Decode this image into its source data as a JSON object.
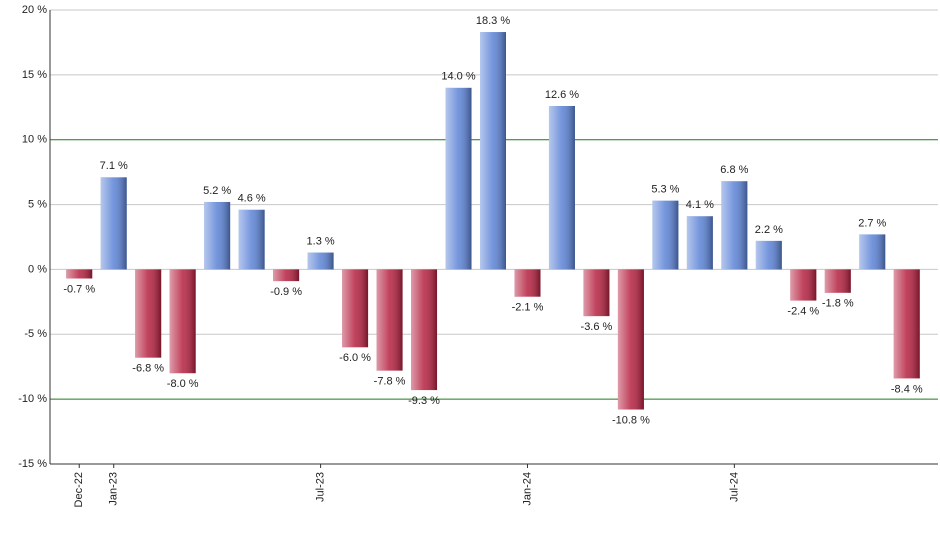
{
  "chart_data": {
    "type": "bar",
    "categories": [
      "Dec-22",
      "Jan-23",
      null,
      null,
      null,
      null,
      null,
      "Jul-23",
      null,
      null,
      null,
      null,
      null,
      "Jan-24",
      null,
      null,
      null,
      null,
      null,
      "Jul-24",
      null,
      null,
      null,
      null,
      null
    ],
    "values": [
      -0.7,
      7.1,
      -6.8,
      -8.0,
      5.2,
      4.6,
      -0.9,
      1.3,
      -6.0,
      -7.8,
      -9.3,
      14.0,
      18.3,
      -2.1,
      12.6,
      -3.6,
      -10.8,
      5.3,
      4.1,
      6.8,
      2.2,
      -2.4,
      -1.8,
      2.7,
      -8.4
    ],
    "value_labels": [
      "-0.7 %",
      "7.1 %",
      "-6.8 %",
      "-8.0 %",
      "5.2 %",
      "4.6 %",
      "-0.9 %",
      "1.3 %",
      "-6.0 %",
      "-7.8 %",
      "-9.3 %",
      "14.0 %",
      "18.3 %",
      "-2.1 %",
      "12.6 %",
      "-3.6 %",
      "-10.8 %",
      "5.3 %",
      "4.1 %",
      "6.8 %",
      "2.2 %",
      "-2.4 %",
      "-1.8 %",
      "2.7 %",
      "-8.4 %"
    ],
    "positive_color": "#5b82d6",
    "negative_color": "#b5203f",
    "ylim": [
      -15,
      20
    ],
    "yticks": [
      {
        "value": -15,
        "label": "-15 %"
      },
      {
        "value": -10,
        "label": "-10 %"
      },
      {
        "value": -5,
        "label": "-5 %"
      },
      {
        "value": 0,
        "label": "0 %"
      },
      {
        "value": 5,
        "label": "5 %"
      },
      {
        "value": 10,
        "label": "10 %"
      },
      {
        "value": 15,
        "label": "15 %"
      },
      {
        "value": 20,
        "label": "20 %"
      }
    ],
    "grid": true,
    "grid_color": "#c8c8c8",
    "highlight_lines": [
      -10,
      10
    ],
    "highlight_color": "#1a7a1a"
  }
}
